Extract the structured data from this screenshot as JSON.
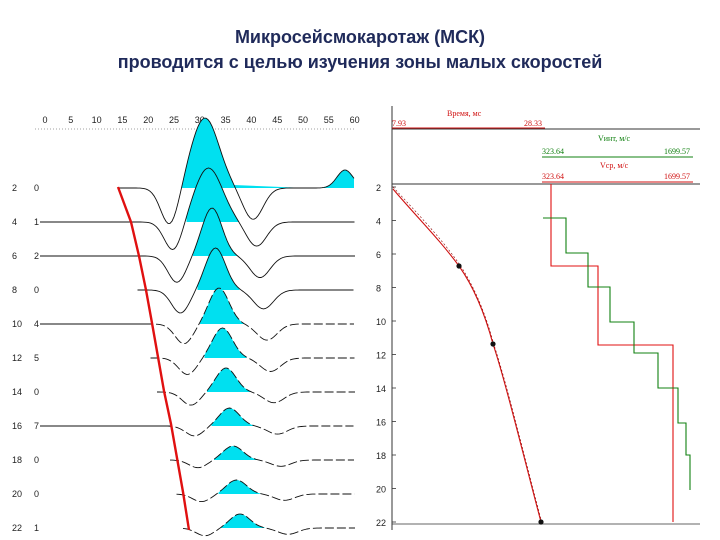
{
  "title": {
    "line1": "Микросейсмокаротаж (МСК)",
    "line2": "проводится с целью изучения зоны малых скоростей"
  },
  "left_panel": {
    "time_ticks": [
      "0",
      "5",
      "10",
      "15",
      "20",
      "25",
      "30",
      "35",
      "40",
      "45",
      "50",
      "55",
      "60"
    ],
    "depth_labels": [
      "2",
      "4",
      "6",
      "8",
      "10",
      "12",
      "14",
      "16",
      "18",
      "20",
      "22"
    ],
    "trace_labels": [
      "0",
      "1",
      "2",
      "0",
      "4",
      "5",
      "0",
      "7",
      "0",
      "0",
      "1"
    ],
    "colors": {
      "fill": "#00e0f0",
      "pick_line": "#e01010"
    }
  },
  "right_panel": {
    "time_header": {
      "label": "Время, мс",
      "min": "7.93",
      "max": "28.33"
    },
    "vint_header": {
      "label": "Vинт, м/с",
      "min": "323.64",
      "max": "1699.57"
    },
    "vav_header": {
      "label": "Vср, м/с",
      "min": "323.64",
      "max": "1699.57"
    },
    "depth_ticks": [
      "2",
      "4",
      "6",
      "8",
      "10",
      "12",
      "14",
      "16",
      "18",
      "20",
      "22"
    ],
    "colors": {
      "time": "#d01010",
      "vint": "#108010",
      "vav": "#d01010"
    }
  }
}
